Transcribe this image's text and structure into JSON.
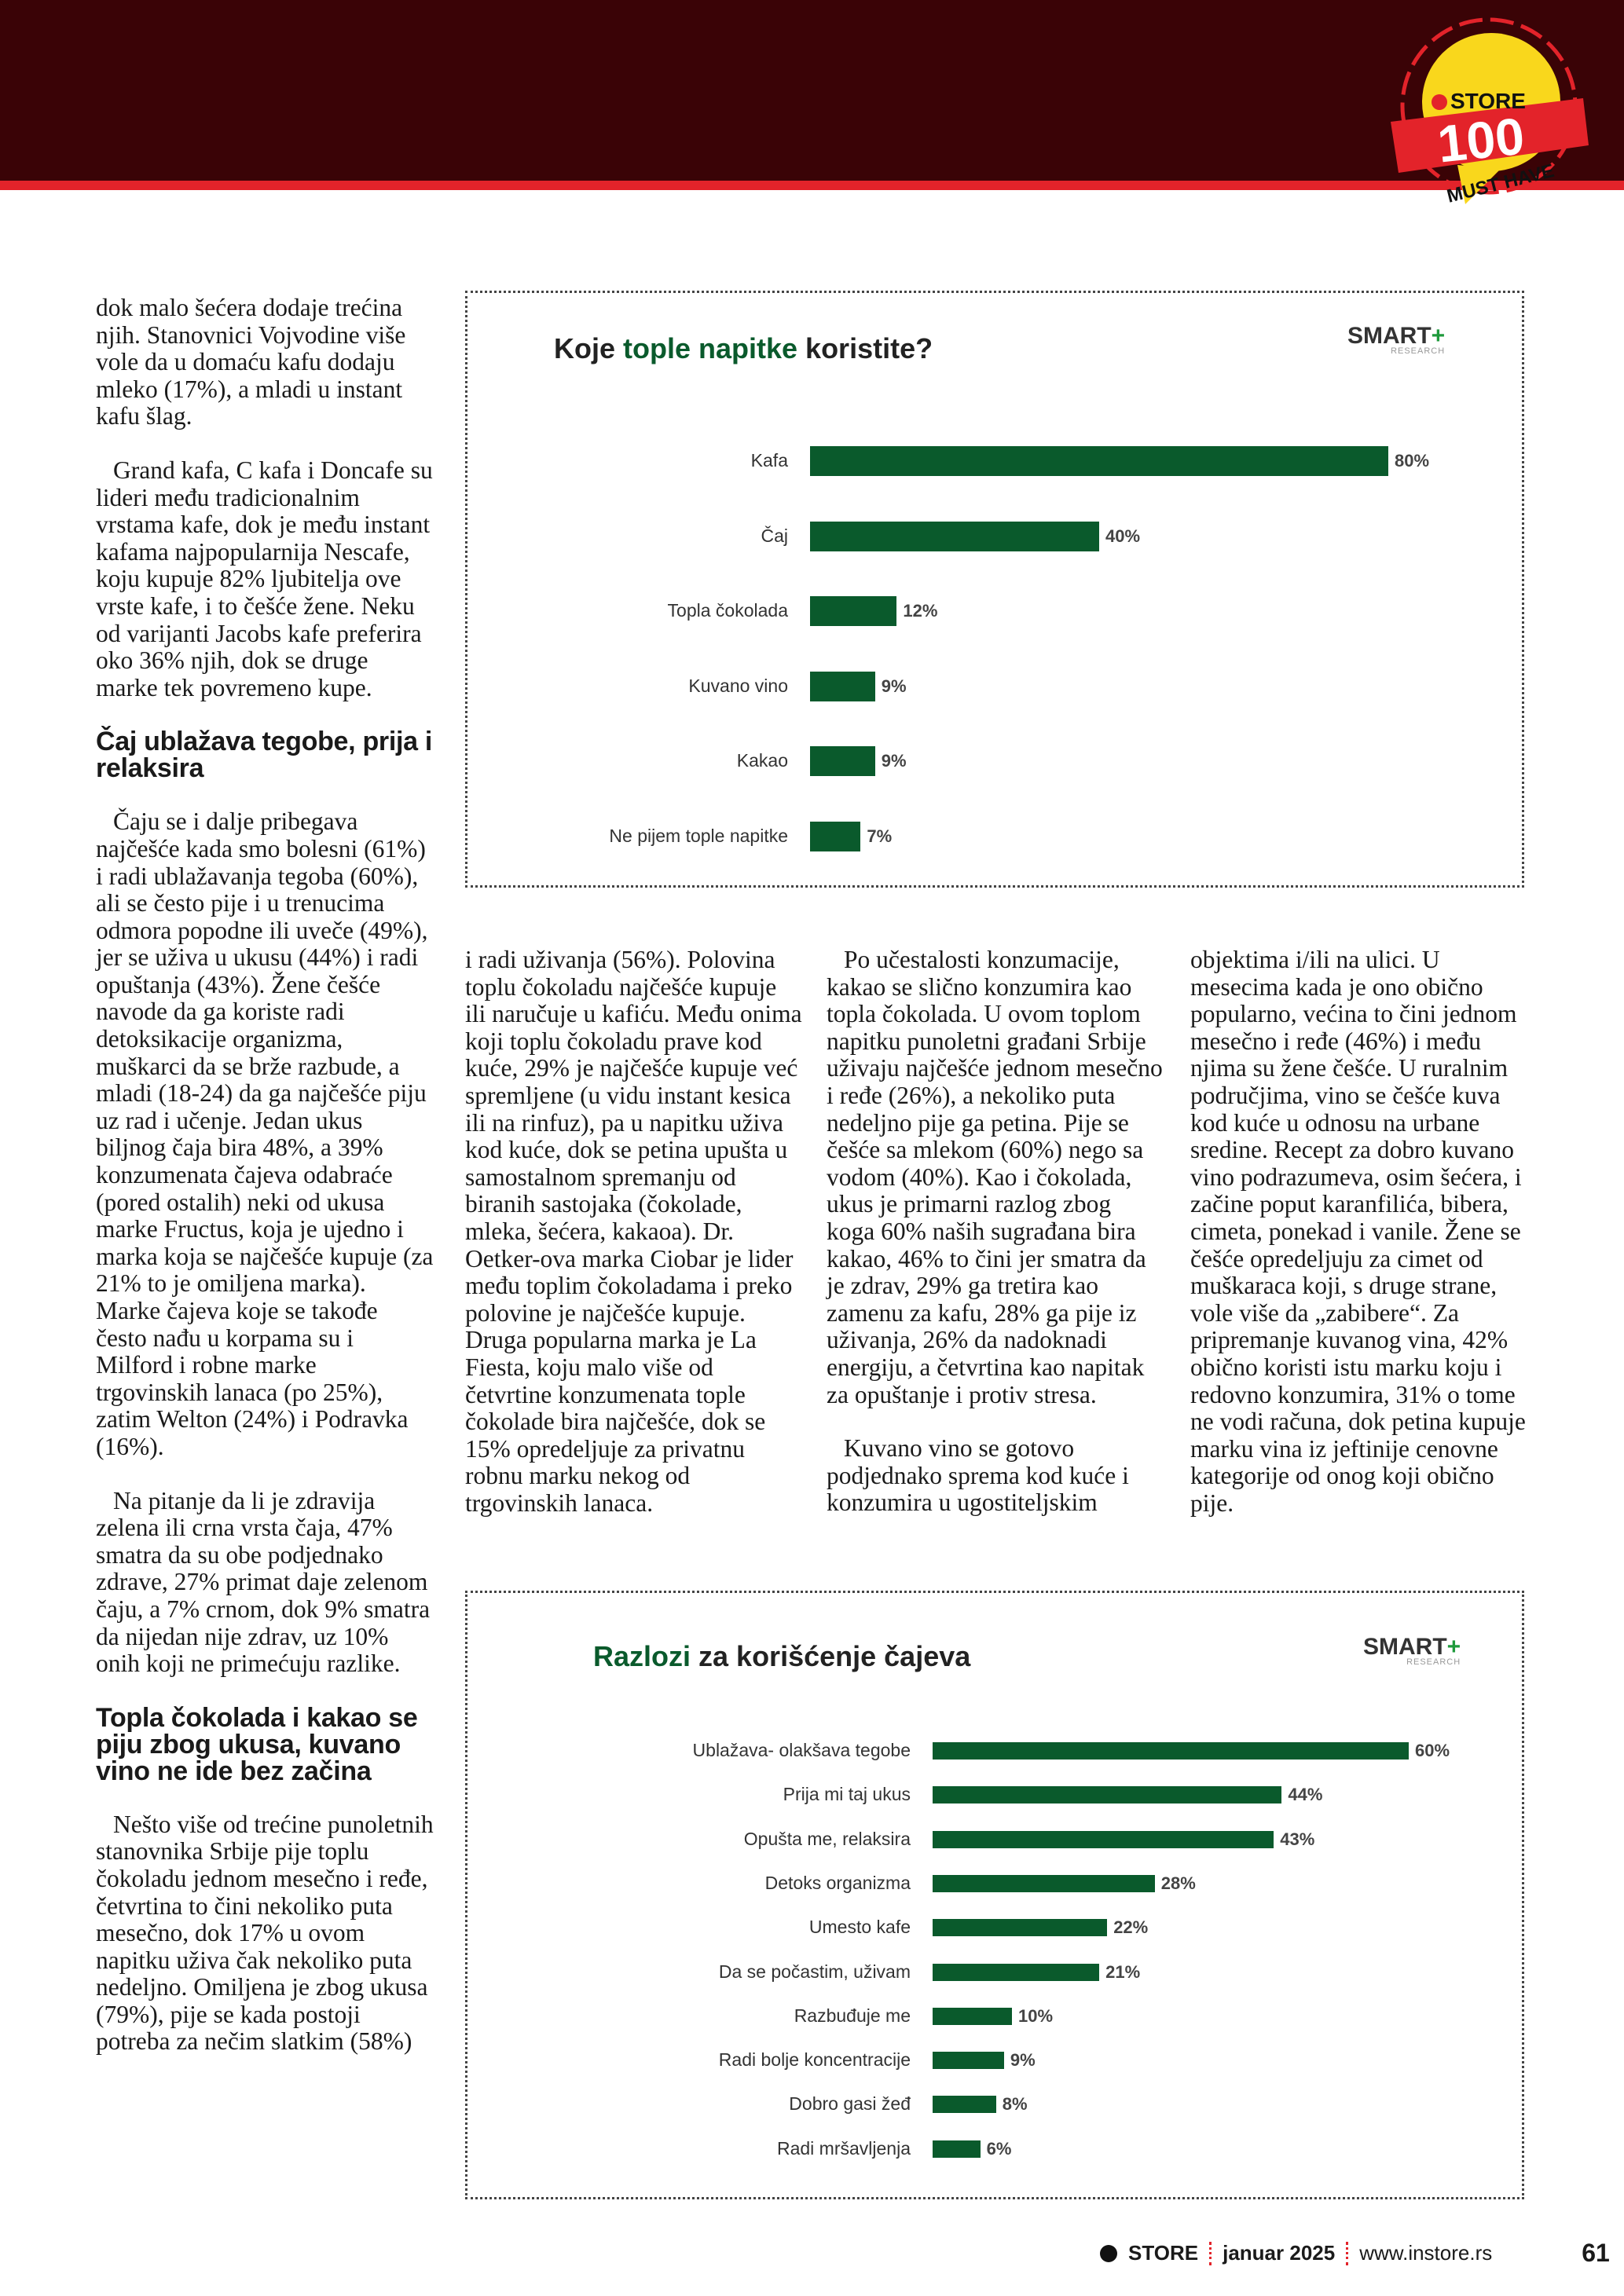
{
  "badge": {
    "brand": "IN STORE",
    "number": "100",
    "tagline": "MUST HAVE",
    "colors": {
      "red": "#e3232a",
      "yellow": "#f9d71c"
    }
  },
  "col1": {
    "p1": "dok malo šećera dodaje trećina njih. Stanovnici Vojvodine više vole da u domaću kafu dodaju mleko (17%), a mladi u instant kafu šlag.",
    "p2": "Grand kafa, C kafa i Doncafe su lideri među tradicionalnim vrstama kafe, dok je među instant kafama najpopularnija Nescafe, koju kupuje 82% ljubitelja ove vrste kafe, i to češće žene. Neku od varijanti Jacobs kafe preferira oko 36% njih, dok se druge marke tek povremeno kupe.",
    "h1": "Čaj ublažava tegobe, prija i relaksira",
    "p3": "Čaju se i dalje pribegava najčešće kada smo bolesni (61%) i radi ublažavanja tegoba (60%), ali se često pije i u trenucima odmora popodne ili uveče (49%), jer se uživa u ukusu (44%) i radi opuštanja (43%). Žene češće navode da ga koriste radi detoksikacije organizma, muškarci da se brže razbude, a mladi (18-24) da ga najčešće piju uz rad i učenje. Jedan ukus biljnog čaja bira 48%, a 39% konzumenata čajeva odabraće (pored ostalih) neki od ukusa marke Fructus, koja je ujedno i marka koja se najčešće kupuje (za 21% to je omiljena marka). Marke čajeva koje se takođe često nađu u korpama su i Milford i robne marke trgovinskih lanaca (po 25%), zatim Welton (24%) i Podravka (16%).",
    "p4": "Na pitanje da li je zdravija zelena ili crna vrsta čaja, 47% smatra da su obe podjednako zdrave, 27% primat daje zelenom čaju, a 7% crnom, dok 9% smatra da nijedan nije zdrav, uz 10% onih koji ne primećuju razlike.",
    "h2": "Topla čokolada i kakao se piju zbog ukusa, kuvano vino ne ide bez začina",
    "p5": "Nešto više od trećine punoletnih stanovnika Srbije pije toplu čokoladu jednom mesečno i ređe, četvrtina to čini nekoliko puta mesečno, dok 17% u ovom napitku uživa čak nekoliko puta nedeljno. Omiljena je zbog ukusa (79%), pije se kada postoji potreba za nečim slatkim (58%)"
  },
  "col2": {
    "p1": "i radi uživanja (56%). Polovina toplu čokoladu najčešće kupuje ili naručuje u kafiću. Među onima koji toplu čokoladu prave kod kuće, 29% je najčešće kupuje već spremljene (u vidu instant kesica ili na rinfuz), pa u napitku uživa kod kuće, dok se petina upušta u samostalnom spremanju od biranih sastojaka (čokolade, mleka, šećera, kakaoa). Dr. Oetker-ova marka Ciobar je lider među toplim čokoladama i preko polovine je najčešće kupuje. Druga popularna marka je La Fiesta, koju malo više od četvrtine konzumenata tople čokolade bira najčešće, dok se 15% opredeljuje za privatnu robnu marku nekog od trgovinskih lanaca."
  },
  "col3": {
    "p1": "Po učestalosti konzumacije, kakao se slično konzumira kao topla čokolada. U ovom toplom napitku punoletni građani Srbije uživaju najčešće jednom mesečno i ređe (26%), a nekoliko puta nedeljno pije ga petina. Pije se češće sa mlekom (60%) nego sa vodom (40%). Kao i čokolada, ukus je primarni razlog zbog koga 60% naših sugrađana bira kakao, 46% to čini jer smatra da je zdrav, 29% ga tretira kao zamenu za kafu, 28% ga pije iz uživanja, 26% da nadoknadi energiju, a četvrtina kao napitak za opuštanje i protiv stresa.",
    "p2": "Kuvano vino se gotovo podjednako sprema kod kuće i konzumira u ugostiteljskim"
  },
  "col4": {
    "p1": "objektima i/ili na ulici. U mesecima kada je ono obično popularno, većina to čini jednom mesečno i ređe (46%) i među njima su žene češće. U ruralnim područjima, vino se češće kuva kod kuće u odnosu na urbane sredine. Recept za dobro kuvano vino podrazumeva, osim šećera, i začine poput karanfilića, bibera, cimeta, ponekad i vanile. Žene se češće opredeljuju za cimet od muškaraca koji, s druge strane, vole više da „zabibere“. Za pripremanje kuvanog vina, 42% obično koristi istu marku koju i redovno konzumira, 31% o tome ne vodi računa, dok petina kupuje marku vina iz jeftinije cenovne kategorije od onog koji obično pije."
  },
  "chart_data": [
    {
      "type": "bar",
      "orientation": "horizontal",
      "title_parts": [
        "Koje ",
        "tople napitke",
        " koristite?"
      ],
      "logo": "SMART+",
      "logo_sub": "RESEARCH",
      "bar_color": "#0a5a2c",
      "categories": [
        "Kafa",
        "Čaj",
        "Topla čokolada",
        "Kuvano vino",
        "Kakao",
        "Ne pijem tople napitke"
      ],
      "values": [
        80,
        40,
        12,
        9,
        9,
        7
      ],
      "labels": [
        "80%",
        "40%",
        "12%",
        "9%",
        "9%",
        "7%"
      ]
    },
    {
      "type": "bar",
      "orientation": "horizontal",
      "title_parts": [
        "Razlozi",
        " za korišćenje čajeva",
        ""
      ],
      "logo": "SMART+",
      "logo_sub": "RESEARCH",
      "bar_color": "#0a5a2c",
      "categories": [
        "Ublažava- olakšava tegobe",
        "Prija mi taj ukus",
        "Opušta me, relaksira",
        "Detoks organizma",
        "Umesto kafe",
        "Da se počastim, uživam",
        "Razbuđuje me",
        "Radi bolje koncentracije",
        "Dobro gasi žeđ",
        "Radi mršavljenja"
      ],
      "values": [
        60,
        44,
        43,
        28,
        22,
        21,
        10,
        9,
        8,
        6
      ],
      "labels": [
        "60%",
        "44%",
        "43%",
        "28%",
        "22%",
        "21%",
        "10%",
        "9%",
        "8%",
        "6%"
      ]
    }
  ],
  "footer": {
    "brand": "STORE",
    "issue": "januar 2025",
    "url": "www.instore.rs",
    "page": "61"
  }
}
